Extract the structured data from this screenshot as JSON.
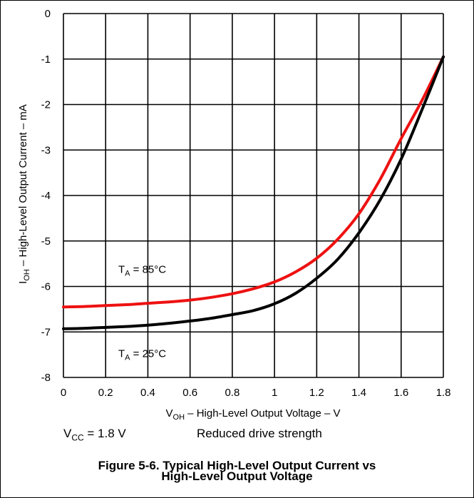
{
  "chart_data": {
    "type": "line",
    "title": "",
    "xlabel": "V_OH – High-Level Output Voltage – V",
    "ylabel": "I_OH – High-Level Output Current – mA",
    "xlabel_parts": {
      "main": "V",
      "sub": "OH",
      "rest": " – High-Level Output Voltage – V"
    },
    "ylabel_parts": {
      "main": "I",
      "sub": "OH",
      "rest": " – High-Level Output Current – mA"
    },
    "xlim": [
      0,
      1.8
    ],
    "ylim": [
      -8,
      0
    ],
    "x_ticks": [
      0,
      0.2,
      0.4,
      0.6,
      0.8,
      1,
      1.2,
      1.4,
      1.6,
      1.8
    ],
    "y_ticks": [
      0,
      -1,
      -2,
      -3,
      -4,
      -5,
      -6,
      -7,
      -8
    ],
    "grid": true,
    "legend": "none",
    "series": [
      {
        "name": "T_A = 85°C",
        "color": "#ee1111",
        "x": [
          0,
          0.1,
          0.2,
          0.3,
          0.4,
          0.5,
          0.6,
          0.7,
          0.8,
          0.9,
          1.0,
          1.1,
          1.2,
          1.3,
          1.4,
          1.5,
          1.6,
          1.7,
          1.8
        ],
        "y": [
          -6.45,
          -6.44,
          -6.42,
          -6.4,
          -6.37,
          -6.34,
          -6.3,
          -6.24,
          -6.16,
          -6.05,
          -5.9,
          -5.68,
          -5.38,
          -4.96,
          -4.4,
          -3.65,
          -2.75,
          -1.9,
          -0.95
        ]
      },
      {
        "name": "T_A = 25°C",
        "color": "#000000",
        "x": [
          0,
          0.1,
          0.2,
          0.3,
          0.4,
          0.5,
          0.6,
          0.7,
          0.8,
          0.9,
          1.0,
          1.1,
          1.2,
          1.3,
          1.4,
          1.5,
          1.6,
          1.7,
          1.8
        ],
        "y": [
          -6.93,
          -6.92,
          -6.9,
          -6.88,
          -6.85,
          -6.81,
          -6.76,
          -6.7,
          -6.62,
          -6.53,
          -6.38,
          -6.15,
          -5.82,
          -5.4,
          -4.82,
          -4.1,
          -3.2,
          -2.1,
          -0.95
        ]
      }
    ],
    "annotations": [
      {
        "main": "T",
        "sub": "A",
        "rest": " = 85°C",
        "x": 0.26,
        "y": -5.7
      },
      {
        "main": "T",
        "sub": "A",
        "rest": " = 25°C",
        "x": 0.26,
        "y": -7.55
      }
    ]
  },
  "notes": {
    "vcc_main": "V",
    "vcc_sub": "CC",
    "vcc_rest": " = 1.8 V",
    "drive": "Reduced drive strength"
  },
  "caption": {
    "line1": "Figure 5-6. Typical High-Level Output Current vs",
    "line2": "High-Level Output Voltage"
  }
}
